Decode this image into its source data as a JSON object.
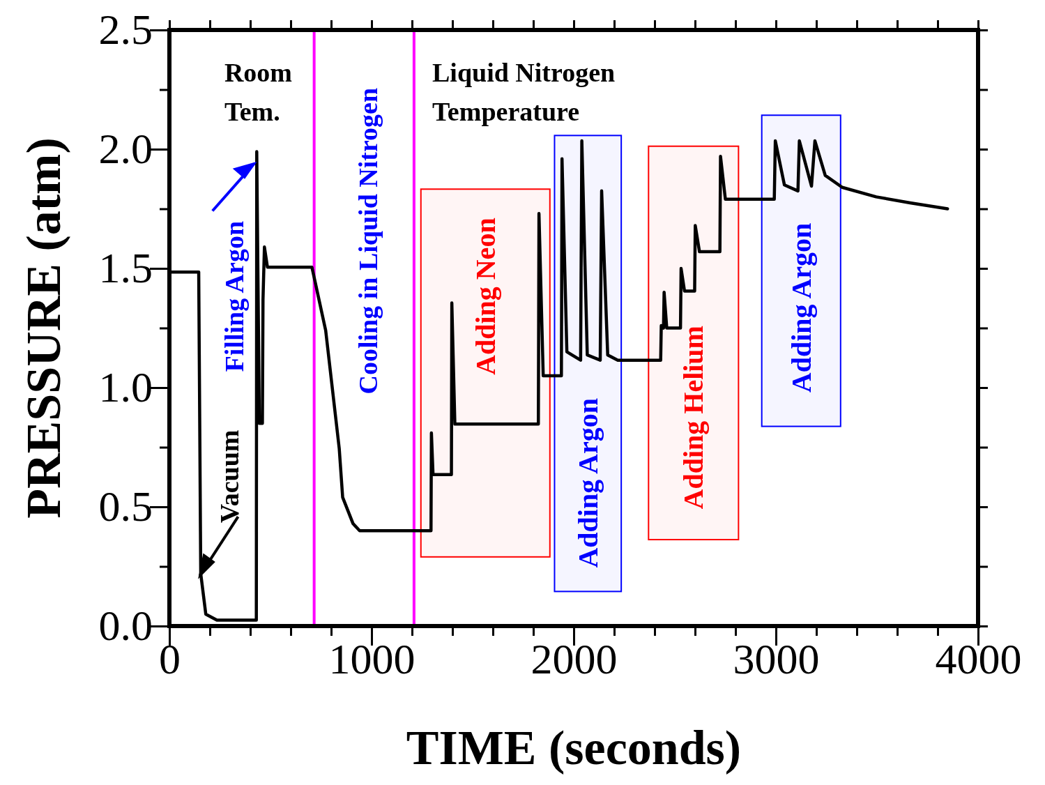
{
  "chart_data": {
    "type": "line",
    "xlabel": "TIME (seconds)",
    "ylabel": "PRESSURE (atm)",
    "xlim": [
      0,
      4000
    ],
    "ylim": [
      0,
      2.5
    ],
    "xticks": [
      0,
      {
        "value": 200,
        "label": null
      },
      {
        "value": 400,
        "label": null
      },
      {
        "value": 600,
        "label": null
      },
      {
        "value": 800,
        "label": null
      },
      1000,
      {
        "value": 1200,
        "label": null
      },
      {
        "value": 1400,
        "label": null
      },
      {
        "value": 1600,
        "label": null
      },
      {
        "value": 1800,
        "label": null
      },
      2000,
      {
        "value": 2200,
        "label": null
      },
      {
        "value": 2400,
        "label": null
      },
      {
        "value": 2600,
        "label": null
      },
      {
        "value": 2800,
        "label": null
      },
      3000,
      {
        "value": 3200,
        "label": null
      },
      {
        "value": 3400,
        "label": null
      },
      {
        "value": 3600,
        "label": null
      },
      {
        "value": 3800,
        "label": null
      },
      4000
    ],
    "yticks": [
      {
        "value": 0,
        "label": "0.0"
      },
      {
        "value": 0.25,
        "label": null
      },
      0.5,
      {
        "value": 0.75,
        "label": null
      },
      {
        "value": 1,
        "label": "1.0"
      },
      {
        "value": 1.25,
        "label": null
      },
      1.5,
      {
        "value": 1.75,
        "label": null
      },
      {
        "value": 2,
        "label": "2.0"
      },
      {
        "value": 2.25,
        "label": null
      },
      2.5
    ],
    "grid": false,
    "marker": "none",
    "line_style": "solid",
    "series": [
      {
        "color": "#000000",
        "x": [
          0,
          145,
          155,
          180,
          235,
          430,
          432,
          445,
          460,
          463,
          470,
          485,
          705,
          773,
          840,
          857,
          908,
          941,
          1294,
          1296,
          1304,
          1395,
          1397,
          1412,
          1825,
          1828,
          1849,
          1939,
          1942,
          1966,
          2034,
          2040,
          2067,
          2131,
          2138,
          2168,
          2218,
          2430,
          2433,
          2444,
          2447,
          2460,
          2528,
          2531,
          2548,
          2598,
          2601,
          2622,
          2723,
          2726,
          2750,
          2992,
          2997,
          3042,
          3109,
          3116,
          3176,
          3193,
          3244,
          3328,
          3496,
          3664,
          3849
        ],
        "values": [
          1.485,
          1.485,
          0.22,
          0.05,
          0.025,
          0.025,
          1.99,
          0.85,
          0.85,
          1.37,
          1.59,
          1.505,
          1.505,
          1.24,
          0.745,
          0.54,
          0.43,
          0.4,
          0.4,
          0.81,
          0.635,
          0.635,
          1.355,
          0.847,
          0.847,
          1.73,
          1.05,
          1.05,
          1.96,
          1.15,
          1.115,
          2.035,
          1.137,
          1.115,
          1.825,
          1.137,
          1.115,
          1.115,
          1.26,
          1.25,
          1.4,
          1.25,
          1.25,
          1.5,
          1.405,
          1.405,
          1.68,
          1.57,
          1.57,
          1.97,
          1.79,
          1.79,
          2.035,
          1.85,
          1.825,
          2.035,
          1.845,
          2.035,
          1.89,
          1.84,
          1.8,
          1.775,
          1.75
        ]
      }
    ],
    "ref_lines": [
      {
        "axis": "x",
        "value": 716,
        "color": "#ff00ff"
      },
      {
        "axis": "x",
        "value": 1210,
        "color": "#ff00ff"
      }
    ],
    "bands": [
      {
        "axis": "x",
        "from": 1244,
        "to": 1882,
        "label": "Adding Neon",
        "color": "#ff0000"
      },
      {
        "axis": "x",
        "from": 1905,
        "to": 2235,
        "label": "Adding Argon",
        "color": "#0000ff"
      },
      {
        "axis": "x",
        "from": 2370,
        "to": 2815,
        "label": "Adding Helium",
        "color": "#ff0000"
      },
      {
        "axis": "x",
        "from": 2930,
        "to": 3320,
        "label": "Adding Argon",
        "color": "#0000ff"
      }
    ],
    "annotations": [
      "Room\nTem.",
      "Liquid Nitrogen\nTemperature",
      {
        "text": "Filling Argon",
        "x": 420,
        "y": 1.94
      },
      {
        "text": "Vacuum",
        "x": 150,
        "y": 0.21
      },
      "Cooling in Liquid Nitrogen"
    ]
  }
}
